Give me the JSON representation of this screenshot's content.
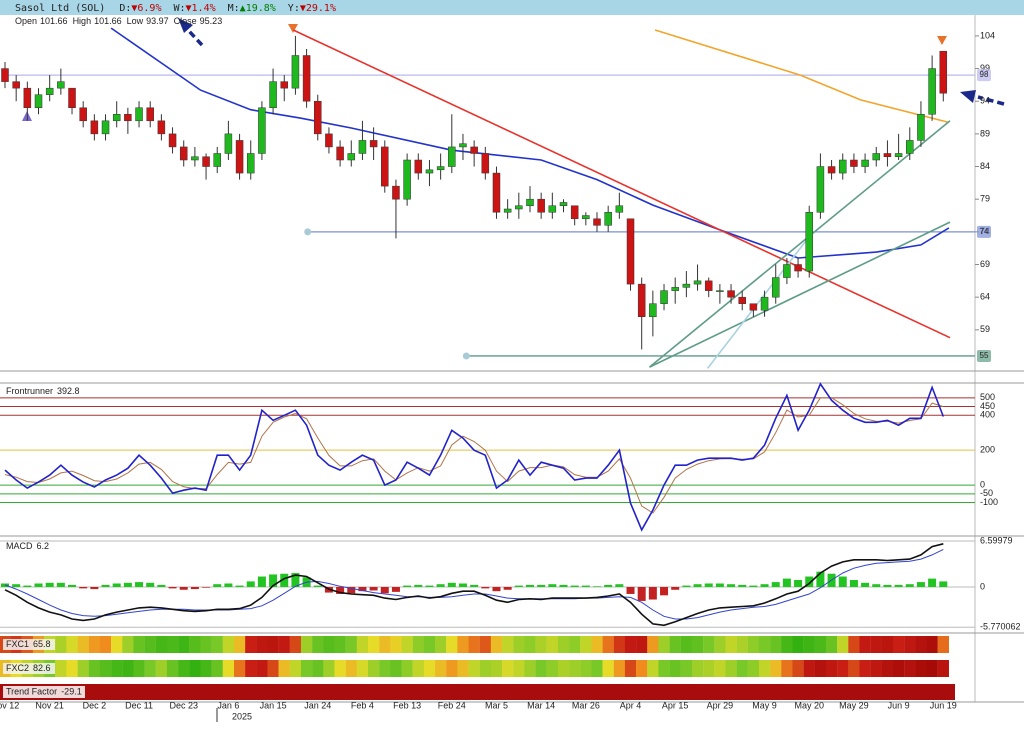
{
  "chart_data": [
    {
      "type": "candlestick",
      "title": "Sasol Ltd (SOL)",
      "change_stats": [
        {
          "period": "D:",
          "change": "▼6.9%",
          "color": "#c00000"
        },
        {
          "period": "W:",
          "change": "▼1.4%",
          "color": "#c00000"
        },
        {
          "period": "M:",
          "change": "▲19.8%",
          "color": "#008000"
        },
        {
          "period": "Y:",
          "change": "▼29.1%",
          "color": "#c00000"
        }
      ],
      "ohlc_labels": [
        "Open",
        "High",
        "Low",
        "Close"
      ],
      "categories": [
        "Nov 12",
        null,
        null,
        null,
        "Nov 21",
        null,
        null,
        null,
        "Dec 2",
        null,
        null,
        null,
        "Dec 11",
        null,
        null,
        null,
        "Dec 23",
        null,
        null,
        null,
        "Jan 6",
        null,
        null,
        null,
        "Jan 15",
        null,
        null,
        null,
        "Jan 24",
        null,
        null,
        null,
        "Feb 4",
        null,
        null,
        null,
        "Feb 13",
        null,
        null,
        null,
        "Feb 24",
        null,
        null,
        null,
        "Mar 5",
        null,
        null,
        null,
        "Mar 14",
        null,
        null,
        null,
        "Mar 26",
        null,
        null,
        null,
        "Apr 4",
        null,
        null,
        null,
        "Apr 15",
        null,
        null,
        null,
        "Apr 29",
        null,
        null,
        null,
        "May 9",
        null,
        null,
        null,
        "May 20",
        null,
        null,
        null,
        "May 29",
        null,
        null,
        null,
        "Jun 9",
        null,
        null,
        null,
        "Jun 19"
      ],
      "year_label": "2025",
      "open": [
        99,
        97,
        96,
        93,
        95,
        96,
        96,
        93,
        91,
        89,
        91,
        92,
        91,
        93,
        91,
        89,
        87,
        85,
        85.5,
        84,
        86,
        88,
        83,
        86,
        93,
        97,
        96,
        101,
        94,
        89,
        87,
        85,
        86,
        88,
        87,
        81,
        79,
        85,
        83,
        83.5,
        84,
        87,
        87,
        86,
        83,
        77,
        77.5,
        78,
        79,
        77,
        78,
        78,
        76,
        76,
        75,
        77,
        76,
        66,
        61,
        63,
        65,
        65.5,
        66,
        66.5,
        65,
        65,
        64,
        63,
        62,
        64,
        67,
        69,
        68,
        77,
        84,
        83,
        85,
        84,
        85,
        86,
        85.5,
        86,
        88,
        92,
        101.66
      ],
      "high": [
        100,
        98,
        97,
        96,
        98,
        99,
        96,
        94,
        92,
        92,
        94,
        93,
        94,
        94,
        92,
        90,
        88,
        87,
        86,
        87,
        91,
        89,
        88,
        94,
        99,
        98,
        104,
        102,
        95,
        90,
        88,
        88,
        91,
        90,
        88,
        82,
        86,
        86,
        85,
        86,
        92,
        89,
        88,
        87,
        84,
        79,
        80,
        81,
        80,
        80,
        79,
        78,
        77,
        77,
        78,
        80,
        76,
        67,
        65,
        66,
        67,
        68,
        69,
        67,
        66,
        66,
        65,
        63,
        65,
        69,
        70,
        70,
        78,
        86,
        85,
        86,
        86,
        86,
        87,
        88,
        89,
        90,
        94,
        101,
        101.66
      ],
      "low": [
        96,
        94,
        91,
        92,
        94,
        95,
        92,
        90,
        88,
        88,
        90,
        89,
        90,
        90,
        88,
        86,
        84,
        84,
        82,
        83,
        85,
        82,
        82,
        85,
        92,
        94,
        95,
        93,
        88,
        86,
        84,
        84,
        85,
        85,
        80,
        73,
        78,
        82,
        81,
        82,
        83,
        85,
        84,
        82,
        76,
        76,
        76,
        77,
        76,
        76,
        77,
        75,
        75,
        74,
        74,
        76,
        65,
        56,
        58,
        62,
        63,
        64,
        65,
        64,
        63,
        63,
        62,
        61,
        61,
        63,
        66,
        67,
        67,
        76,
        82,
        82,
        83,
        83,
        84,
        84,
        85,
        85,
        87,
        91,
        93.97
      ],
      "close": [
        97,
        96,
        93,
        95,
        96,
        97,
        93,
        91,
        89,
        91,
        92,
        91,
        93,
        91,
        89,
        87,
        85,
        85.5,
        84,
        86,
        89,
        83,
        86,
        93,
        97,
        96,
        101,
        94,
        89,
        87,
        85,
        86,
        88,
        87,
        81,
        79,
        85,
        83,
        83.5,
        84,
        87,
        87.5,
        86,
        83,
        77,
        77.5,
        78,
        79,
        77,
        78,
        78.5,
        76,
        76.5,
        75,
        77,
        78,
        66,
        61,
        63,
        65,
        65.5,
        66,
        66.5,
        65,
        65,
        64,
        63,
        62,
        64,
        67,
        69,
        68,
        77,
        84,
        83,
        85,
        84,
        85,
        86,
        85.5,
        86,
        88,
        92,
        99,
        95.23
      ],
      "up_color": "#1fb81f",
      "down_color": "#cc1414",
      "ylim": [
        52.85,
        107.2
      ],
      "yticks": [
        59,
        64,
        69,
        74,
        79,
        84,
        89,
        94,
        99,
        104
      ],
      "overlays": [
        {
          "color": "#2233cc",
          "x": [
            9.5,
            17.5,
            22,
            26.5,
            31,
            40,
            48,
            53,
            58,
            64,
            71,
            78,
            82,
            84.5
          ],
          "values": [
            105.2,
            95.7,
            92.7,
            91.4,
            89.9,
            86.5,
            85,
            82,
            78.1,
            74.3,
            70,
            70.9,
            72,
            74.6
          ]
        },
        {
          "color": "#f2a52c",
          "x": [
            58.2,
            71.2,
            76.6,
            84.4
          ],
          "values": [
            104.9,
            98,
            94.2,
            90.8
          ]
        },
        {
          "color": "#e8322c",
          "x": [
            25.8,
            84.6
          ],
          "values": [
            104.9,
            57.8
          ]
        },
        {
          "color": "#5e9c86",
          "x": [
            57.7,
            84.6
          ],
          "values": [
            53.3,
            91
          ]
        },
        {
          "color": "#5e9c86",
          "x": [
            57.7,
            84.6
          ],
          "values": [
            53.3,
            75.5
          ]
        },
        {
          "color": "#a9d3e0",
          "x": [
            62.9,
            72.1
          ],
          "values": [
            53.1,
            73.5
          ]
        }
      ],
      "levels": [
        {
          "value": 98,
          "color": "#b8b8ee",
          "start": 0
        },
        {
          "value": 74,
          "color": "#7b8fd6",
          "start": 27.1
        },
        {
          "value": 55,
          "color": "#5e9c86",
          "start": 41.3
        }
      ]
    },
    {
      "type": "line",
      "title": "Frontrunner",
      "ylim": [
        -286,
        585
      ],
      "yticks": [
        -100,
        -50,
        0,
        200,
        400,
        450,
        500
      ],
      "tick_colors": [
        "#33aa33",
        "#33aa33",
        "#33aa33",
        "#e0c040",
        "#a83232",
        "#a83232",
        "#a83232"
      ],
      "series": [
        {
          "color": "#2222cc",
          "values": [
            86,
            29,
            -17,
            17,
            57,
            114,
            57,
            17,
            -11,
            29,
            57,
            97,
            171,
            114,
            40,
            -46,
            -29,
            -17,
            -29,
            171,
            171,
            86,
            171,
            429,
            371,
            400,
            429,
            343,
            171,
            114,
            86,
            131,
            171,
            143,
            0,
            29,
            131,
            97,
            57,
            171,
            314,
            269,
            200,
            171,
            -17,
            29,
            143,
            57,
            131,
            114,
            97,
            29,
            40,
            40,
            114,
            200,
            -103,
            -257,
            -143,
            0,
            114,
            114,
            143,
            154,
            154,
            154,
            143,
            154,
            229,
            383,
            514,
            314,
            429,
            580,
            486,
            429,
            383,
            360,
            360,
            371,
            343,
            383,
            383,
            560,
            392.8
          ]
        },
        {
          "color": "#b0744a",
          "values": [
            60,
            45,
            20,
            15,
            35,
            70,
            80,
            55,
            25,
            20,
            35,
            70,
            120,
            130,
            90,
            20,
            -10,
            -20,
            -20,
            60,
            130,
            120,
            130,
            280,
            360,
            390,
            410,
            380,
            270,
            170,
            110,
            110,
            140,
            150,
            80,
            30,
            70,
            100,
            80,
            110,
            230,
            280,
            250,
            200,
            80,
            20,
            80,
            100,
            100,
            115,
            105,
            60,
            45,
            45,
            80,
            150,
            40,
            -120,
            -160,
            -70,
            40,
            90,
            120,
            140,
            150,
            152,
            148,
            150,
            190,
            300,
            430,
            390,
            400,
            500,
            500,
            460,
            410,
            380,
            365,
            365,
            355,
            370,
            380,
            470,
            450
          ]
        }
      ]
    },
    {
      "type": "macd",
      "title": "MACD",
      "ylim": [
        -6.46,
        7.03
      ],
      "yticks": [
        -5.770062,
        0,
        6.59979
      ],
      "histogram": {
        "up_color": "#22c422",
        "down_color": "#c42222",
        "values": [
          0.5,
          0.4,
          0.2,
          0.5,
          0.6,
          0.6,
          0.3,
          -0.2,
          -0.3,
          0.3,
          0.5,
          0.6,
          0.7,
          0.6,
          0.3,
          -0.2,
          -0.4,
          -0.3,
          -0.1,
          0.4,
          0.5,
          0.2,
          0.8,
          1.5,
          1.8,
          1.9,
          2.0,
          1.4,
          0.2,
          -0.8,
          -1.0,
          -0.9,
          -0.6,
          -0.5,
          -0.9,
          -0.7,
          0.2,
          0.3,
          0.2,
          0.4,
          0.6,
          0.5,
          0.3,
          -0.2,
          -0.6,
          -0.4,
          0.2,
          0.3,
          0.3,
          0.4,
          0.3,
          0.2,
          0.2,
          0.1,
          0.3,
          0.4,
          -1.0,
          -2.0,
          -1.8,
          -1.2,
          -0.4,
          0.2,
          0.4,
          0.5,
          0.5,
          0.4,
          0.3,
          0.2,
          0.4,
          0.7,
          1.2,
          1.0,
          1.5,
          2.2,
          1.9,
          1.5,
          1.0,
          0.6,
          0.4,
          0.3,
          0.3,
          0.4,
          0.7,
          1.2,
          0.8
        ]
      },
      "series": [
        {
          "color": "#111111",
          "values": [
            -0.4,
            -1.2,
            -2.2,
            -3.0,
            -3.6,
            -4.0,
            -4.6,
            -4.8,
            -4.6,
            -4.0,
            -3.6,
            -3.3,
            -3.0,
            -2.9,
            -3.0,
            -3.2,
            -3.4,
            -3.5,
            -3.4,
            -3.2,
            -3.2,
            -3.1,
            -2.6,
            -1.5,
            0.2,
            1.2,
            1.7,
            1.5,
            0.6,
            -0.3,
            -0.8,
            -1.0,
            -1.1,
            -1.2,
            -1.6,
            -1.8,
            -1.5,
            -1.3,
            -1.6,
            -1.4,
            -0.9,
            -0.6,
            -0.6,
            -1.2,
            -1.9,
            -2.2,
            -1.8,
            -1.7,
            -1.8,
            -1.6,
            -1.6,
            -1.6,
            -1.6,
            -1.5,
            -1.3,
            -1.0,
            -2.2,
            -3.9,
            -5.3,
            -5.5,
            -5.0,
            -4.4,
            -3.8,
            -3.3,
            -3.0,
            -2.9,
            -2.8,
            -2.7,
            -2.3,
            -1.7,
            -1.0,
            -0.6,
            0.5,
            2.0,
            3.0,
            3.6,
            3.9,
            3.9,
            3.9,
            3.8,
            3.9,
            4.0,
            4.6,
            5.8,
            6.2
          ]
        },
        {
          "color": "#3344cc",
          "values": [
            0.3,
            -0.3,
            -1.0,
            -1.8,
            -2.6,
            -3.3,
            -3.8,
            -4.1,
            -4.2,
            -4.1,
            -3.9,
            -3.7,
            -3.5,
            -3.3,
            -3.2,
            -3.2,
            -3.2,
            -3.3,
            -3.3,
            -3.3,
            -3.3,
            -3.2,
            -3.1,
            -2.7,
            -1.9,
            -0.9,
            0.1,
            0.7,
            0.8,
            0.5,
            0.1,
            -0.2,
            -0.5,
            -0.8,
            -1.0,
            -1.2,
            -1.4,
            -1.4,
            -1.5,
            -1.5,
            -1.4,
            -1.2,
            -1.0,
            -1.0,
            -1.3,
            -1.6,
            -1.7,
            -1.7,
            -1.7,
            -1.7,
            -1.7,
            -1.7,
            -1.6,
            -1.6,
            -1.5,
            -1.4,
            -1.5,
            -2.2,
            -3.3,
            -4.2,
            -4.6,
            -4.6,
            -4.4,
            -4.0,
            -3.6,
            -3.3,
            -3.1,
            -2.9,
            -2.8,
            -2.5,
            -2.0,
            -1.5,
            -1.0,
            -0.1,
            1.0,
            2.0,
            2.7,
            3.1,
            3.4,
            3.5,
            3.6,
            3.7,
            4.0,
            4.6,
            5.4
          ]
        }
      ]
    },
    {
      "type": "heatmap",
      "title": "FXC1",
      "values": [
        70,
        72,
        68,
        60,
        45,
        42,
        48,
        55,
        60,
        62,
        50,
        40,
        30,
        25,
        20,
        22,
        18,
        25,
        30,
        35,
        45,
        55,
        75,
        80,
        82,
        78,
        70,
        40,
        30,
        25,
        28,
        35,
        45,
        50,
        55,
        52,
        45,
        38,
        35,
        40,
        50,
        60,
        65,
        68,
        55,
        45,
        40,
        38,
        42,
        45,
        40,
        38,
        45,
        55,
        65,
        72,
        78,
        80,
        60,
        40,
        30,
        25,
        28,
        35,
        40,
        45,
        42,
        38,
        35,
        30,
        20,
        15,
        18,
        22,
        30,
        45,
        70,
        78,
        80,
        82,
        75,
        80,
        85,
        88,
        65.8
      ]
    },
    {
      "type": "heatmap",
      "title": "FXC2",
      "values": [
        55,
        50,
        45,
        40,
        35,
        45,
        50,
        40,
        30,
        25,
        20,
        18,
        25,
        35,
        40,
        30,
        20,
        15,
        20,
        30,
        50,
        65,
        75,
        78,
        70,
        55,
        45,
        35,
        30,
        40,
        50,
        55,
        48,
        40,
        35,
        30,
        38,
        45,
        50,
        55,
        60,
        55,
        45,
        40,
        42,
        48,
        45,
        40,
        35,
        38,
        42,
        40,
        38,
        35,
        50,
        60,
        70,
        62,
        45,
        35,
        30,
        35,
        40,
        42,
        45,
        40,
        35,
        38,
        45,
        55,
        65,
        70,
        80,
        85,
        80,
        75,
        70,
        75,
        80,
        85,
        88,
        85,
        90,
        92,
        82.6
      ]
    },
    {
      "type": "indicator",
      "title": "Trend Factor",
      "value": -29.1,
      "color": "#a80c0c"
    }
  ]
}
